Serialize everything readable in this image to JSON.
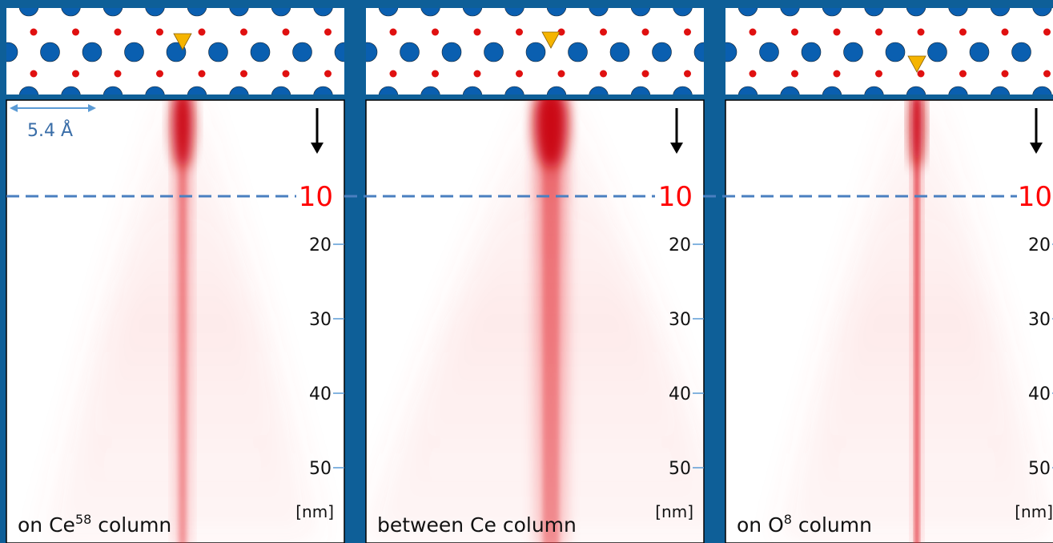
{
  "panels": [
    {
      "label": {
        "before": "on Ce",
        "sup": "58",
        "after": " column"
      }
    },
    {
      "label": {
        "before": "between Ce column"
      }
    },
    {
      "label": {
        "before": "on O",
        "sup": "8",
        "after": " column"
      }
    }
  ],
  "depth": {
    "highlight": 10,
    "ticks": [
      20,
      30,
      40,
      50
    ],
    "unit": "[nm]"
  },
  "scale_bar": "5.4 Å"
}
